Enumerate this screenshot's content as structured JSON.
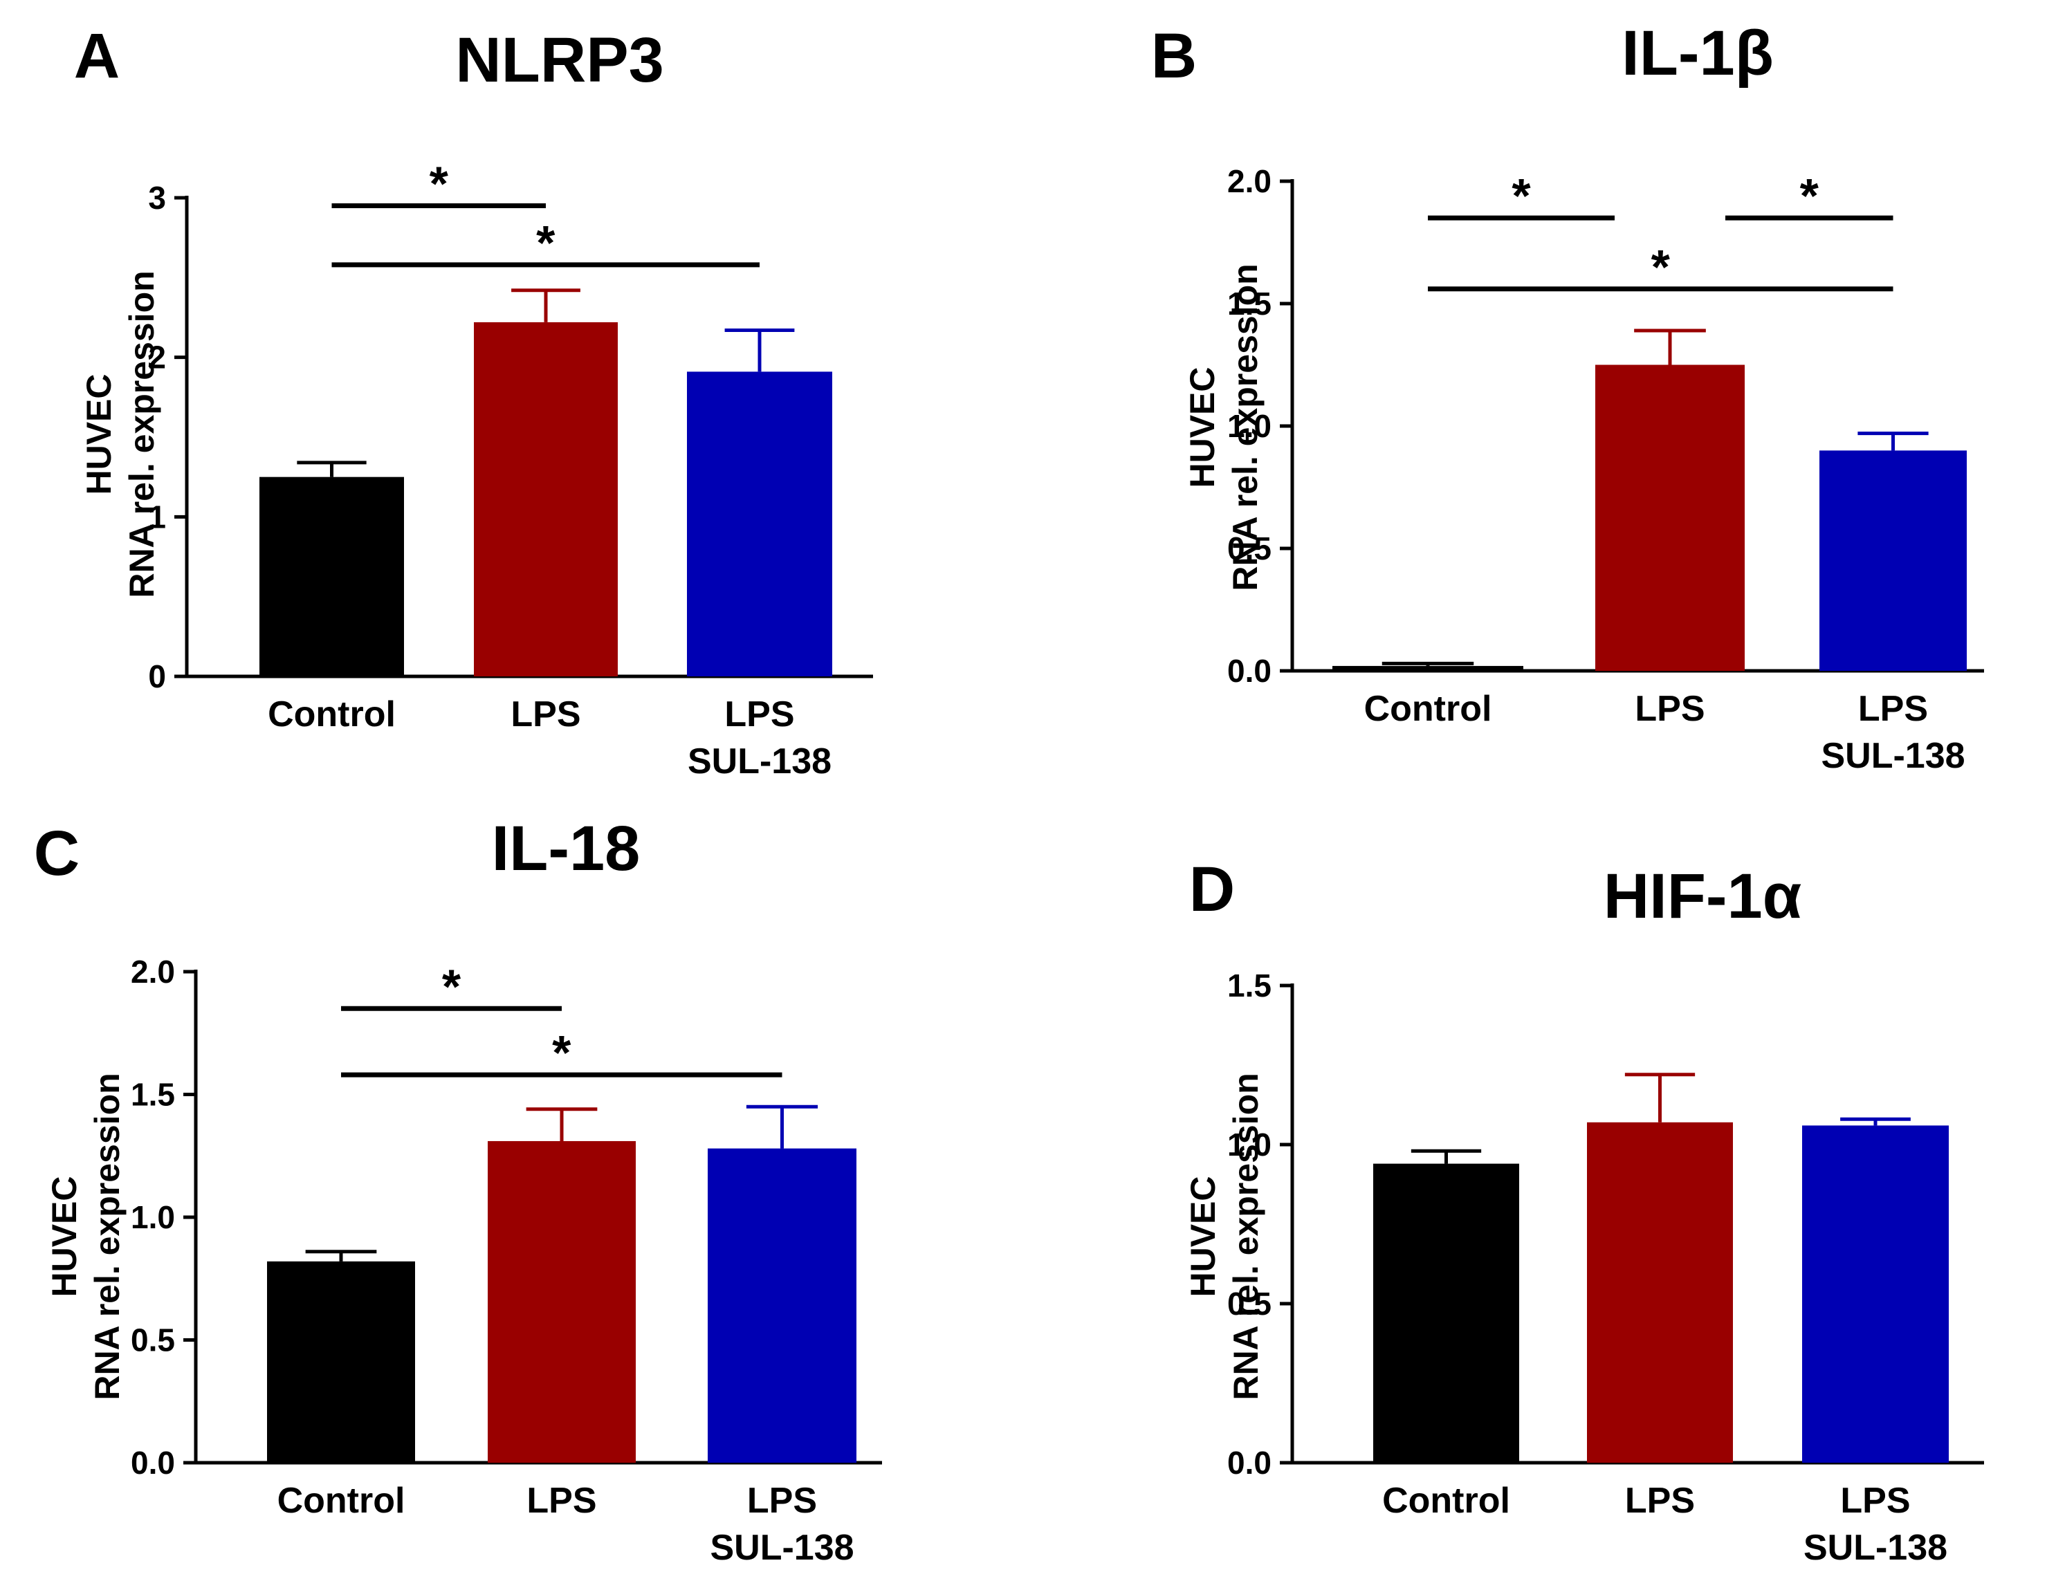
{
  "chart_data": [
    {
      "type": "bar",
      "panel_letter": "A",
      "title": "NLRP3",
      "ylabel_line1": "HUVEC",
      "ylabel_line2": "RNA rel. expression",
      "ylim": [
        0,
        3
      ],
      "y_ticks": [
        "0",
        "1",
        "2",
        "3"
      ],
      "categories": [
        [
          "Control"
        ],
        [
          "LPS"
        ],
        [
          "LPS",
          "SUL-138"
        ]
      ],
      "values": [
        1.25,
        2.22,
        1.91
      ],
      "errors": [
        0.09,
        0.2,
        0.26
      ],
      "colors": [
        "#000000",
        "#990000",
        "#0000b3"
      ],
      "significance": [
        {
          "from": 0,
          "to": 1,
          "label": "*",
          "y": 2.95
        },
        {
          "from": 0,
          "to": 2,
          "label": "*",
          "y": 2.58
        }
      ]
    },
    {
      "type": "bar",
      "panel_letter": "B",
      "title": "IL-1β",
      "ylabel_line1": "HUVEC",
      "ylabel_line2": "RNA rel. expression",
      "ylim": [
        0,
        2
      ],
      "y_ticks": [
        "0.0",
        "0.5",
        "1.0",
        "1.5",
        "2.0"
      ],
      "categories": [
        [
          "Control"
        ],
        [
          "LPS"
        ],
        [
          "LPS",
          "SUL-138"
        ]
      ],
      "values": [
        0.02,
        1.25,
        0.9
      ],
      "errors": [
        0.01,
        0.14,
        0.07
      ],
      "colors": [
        "#000000",
        "#990000",
        "#0000b3"
      ],
      "significance": [
        {
          "from": 0,
          "to": 1,
          "label": "*",
          "y": 1.85,
          "x_to_offset": -0.08
        },
        {
          "from": 1,
          "to": 2,
          "label": "*",
          "y": 1.85,
          "x_from_offset": 0.08
        },
        {
          "from": 0,
          "to": 2,
          "label": "*",
          "y": 1.56
        }
      ]
    },
    {
      "type": "bar",
      "panel_letter": "C",
      "title": "IL-18",
      "ylabel_line1": "HUVEC",
      "ylabel_line2": "RNA rel. expression",
      "ylim": [
        0,
        2
      ],
      "y_ticks": [
        "0.0",
        "0.5",
        "1.0",
        "1.5",
        "2.0"
      ],
      "categories": [
        [
          "Control"
        ],
        [
          "LPS"
        ],
        [
          "LPS",
          "SUL-138"
        ]
      ],
      "values": [
        0.82,
        1.31,
        1.28
      ],
      "errors": [
        0.04,
        0.13,
        0.17
      ],
      "colors": [
        "#000000",
        "#990000",
        "#0000b3"
      ],
      "significance": [
        {
          "from": 0,
          "to": 1,
          "label": "*",
          "y": 1.85
        },
        {
          "from": 0,
          "to": 2,
          "label": "*",
          "y": 1.58
        }
      ]
    },
    {
      "type": "bar",
      "panel_letter": "D",
      "title": "HIF-1α",
      "ylabel_line1": "HUVEC",
      "ylabel_line2": "RNA rel. expression",
      "ylim": [
        0,
        1.5
      ],
      "y_ticks": [
        "0.0",
        "0.5",
        "1.0",
        "1.5"
      ],
      "categories": [
        [
          "Control"
        ],
        [
          "LPS"
        ],
        [
          "LPS",
          "SUL-138"
        ]
      ],
      "values": [
        0.94,
        1.07,
        1.06
      ],
      "errors": [
        0.04,
        0.15,
        0.02
      ],
      "colors": [
        "#000000",
        "#990000",
        "#0000b3"
      ],
      "significance": []
    }
  ]
}
